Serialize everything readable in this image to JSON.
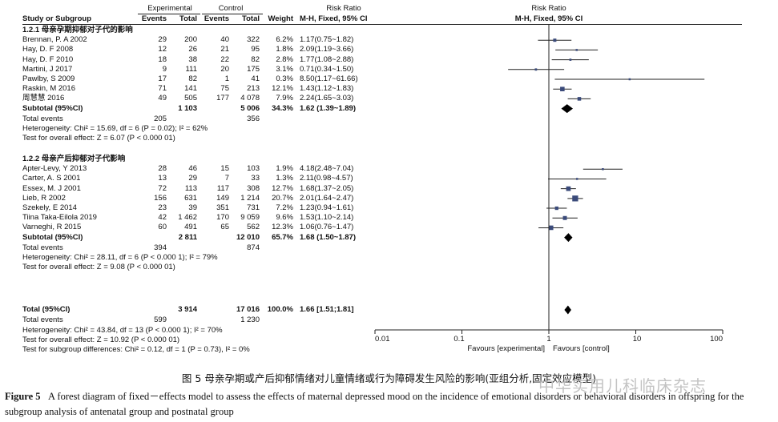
{
  "header": {
    "experimental": "Experimental",
    "control": "Control",
    "risk_ratio": "Risk Ratio",
    "risk_ratio_plot": "Risk Ratio",
    "study": "Study or Subgroup",
    "events_e": "Events",
    "total_e": "Total",
    "events_c": "Events",
    "total_c": "Total",
    "weight": "Weight",
    "method": "M-H, Fixed, 95% CI",
    "method_plot": "M-H, Fixed, 95% CI"
  },
  "subgroups": [
    {
      "title": "1.2.1 母亲孕期抑郁对子代的影响",
      "studies": [
        {
          "name": "Brennan, P. A 2002",
          "ee": "29",
          "et": "200",
          "ce": "40",
          "ct": "322",
          "w": "6.2%",
          "ci": "1.17(0.75~1.82)",
          "rr": 1.17,
          "lo": 0.75,
          "hi": 1.82
        },
        {
          "name": "Hay, D. F 2008",
          "ee": "12",
          "et": "26",
          "ce": "21",
          "ct": "95",
          "w": "1.8%",
          "ci": "2.09(1.19~3.66)",
          "rr": 2.09,
          "lo": 1.19,
          "hi": 3.66
        },
        {
          "name": "Hay, D. F 2010",
          "ee": "18",
          "et": "38",
          "ce": "22",
          "ct": "82",
          "w": "2.8%",
          "ci": "1.77(1.08~2.88)",
          "rr": 1.77,
          "lo": 1.08,
          "hi": 2.88
        },
        {
          "name": "Martini, J 2017",
          "ee": "9",
          "et": "111",
          "ce": "20",
          "ct": "175",
          "w": "3.1%",
          "ci": "0.71(0.34~1.50)",
          "rr": 0.71,
          "lo": 0.34,
          "hi": 1.5
        },
        {
          "name": "Pawlby, S 2009",
          "ee": "17",
          "et": "82",
          "ce": "1",
          "ct": "41",
          "w": "0.3%",
          "ci": "8.50(1.17~61.66)",
          "rr": 8.5,
          "lo": 1.17,
          "hi": 61.66
        },
        {
          "name": "Raskin, M 2016",
          "ee": "71",
          "et": "141",
          "ce": "75",
          "ct": "213",
          "w": "12.1%",
          "ci": "1.43(1.12~1.83)",
          "rr": 1.43,
          "lo": 1.12,
          "hi": 1.83
        },
        {
          "name": "周慧慧 2016",
          "ee": "49",
          "et": "505",
          "ce": "177",
          "ct": "4 078",
          "w": "7.9%",
          "ci": "2.24(1.65~3.03)",
          "rr": 2.24,
          "lo": 1.65,
          "hi": 3.03
        }
      ],
      "subtotal": {
        "label": "Subtotal (95%CI)",
        "et": "1 103",
        "ct": "5 006",
        "w": "34.3%",
        "ci": "1.62 (1.39~1.89)",
        "rr": 1.62,
        "lo": 1.39,
        "hi": 1.89
      },
      "total_events": {
        "label": "Total events",
        "e": "205",
        "c": "356"
      },
      "heterogeneity": "Heterogeneity: Chi² = 15.69, df = 6 (P = 0.02); I² = 62%",
      "overall": "Test for overall effect: Z = 6.07 (P < 0.000 01)"
    },
    {
      "title": "1.2.2 母亲产后抑郁对子代影响",
      "studies": [
        {
          "name": "Apter-Levy, Y 2013",
          "ee": "28",
          "et": "46",
          "ce": "15",
          "ct": "103",
          "w": "1.9%",
          "ci": "4.18(2.48~7.04)",
          "rr": 4.18,
          "lo": 2.48,
          "hi": 7.04
        },
        {
          "name": "Carter, A. S 2001",
          "ee": "13",
          "et": "29",
          "ce": "7",
          "ct": "33",
          "w": "1.3%",
          "ci": "2.11(0.98~4.57)",
          "rr": 2.11,
          "lo": 0.98,
          "hi": 4.57
        },
        {
          "name": "Essex, M. J 2001",
          "ee": "72",
          "et": "113",
          "ce": "117",
          "ct": "308",
          "w": "12.7%",
          "ci": "1.68(1.37~2.05)",
          "rr": 1.68,
          "lo": 1.37,
          "hi": 2.05
        },
        {
          "name": "Lieb, R 2002",
          "ee": "156",
          "et": "631",
          "ce": "149",
          "ct": "1 214",
          "w": "20.7%",
          "ci": "2.01(1.64~2.47)",
          "rr": 2.01,
          "lo": 1.64,
          "hi": 2.47
        },
        {
          "name": "Szekely, E 2014",
          "ee": "23",
          "et": "39",
          "ce": "351",
          "ct": "731",
          "w": "7.2%",
          "ci": "1.23(0.94~1.61)",
          "rr": 1.23,
          "lo": 0.94,
          "hi": 1.61
        },
        {
          "name": "Tiina Taka-Eilola 2019",
          "ee": "42",
          "et": "1 462",
          "ce": "170",
          "ct": "9 059",
          "w": "9.6%",
          "ci": "1.53(1.10~2.14)",
          "rr": 1.53,
          "lo": 1.1,
          "hi": 2.14
        },
        {
          "name": "Varneghi, R 2015",
          "ee": "60",
          "et": "491",
          "ce": "65",
          "ct": "562",
          "w": "12.3%",
          "ci": "1.06(0.76~1.47)",
          "rr": 1.06,
          "lo": 0.76,
          "hi": 1.47
        }
      ],
      "subtotal": {
        "label": "Subtotal (95%CI)",
        "et": "2 811",
        "ct": "12 010",
        "w": "65.7%",
        "ci": "1.68 (1.50~1.87)",
        "rr": 1.68,
        "lo": 1.5,
        "hi": 1.87
      },
      "total_events": {
        "label": "Total events",
        "e": "394",
        "c": "874"
      },
      "heterogeneity": "Heterogeneity: Chi² = 28.11, df = 6 (P < 0.000 1); I² = 79%",
      "overall": "Test for overall effect: Z = 9.08 (P < 0.000 01)"
    }
  ],
  "total": {
    "label": "Total (95%CI)",
    "et": "3 914",
    "ct": "17 016",
    "w": "100.0%",
    "ci": "1.66 [1.51;1.81]",
    "rr": 1.66,
    "lo": 1.51,
    "hi": 1.81,
    "events_label": "Total events",
    "e": "599",
    "c": "1 230",
    "heterogeneity": "Heterogeneity: Chi² = 43.84, df = 13 (P < 0.000 1); I² = 70%",
    "overall": "Test for overall effect: Z = 10.92 (P < 0.000 01)",
    "subgroup": "Test for subgroup differences: Chi² = 0.12, df = 1 (P = 0.73), I² = 0%"
  },
  "chart_data": {
    "type": "scatter",
    "x_scale": "log",
    "xlim": [
      0.01,
      100
    ],
    "ticks": [
      "0.01",
      "0.1",
      "1",
      "10",
      "100"
    ],
    "tick_values": [
      0.01,
      0.1,
      1,
      10,
      100
    ],
    "favours_left": "Favours [experimental]",
    "favours_right": "Favours [control]",
    "reference_line": 1
  },
  "caption": {
    "cn": "图 5   母亲孕期或产后抑郁情绪对儿童情绪或行为障碍发生风险的影响(亚组分析,固定效应模型)",
    "en_fig": "Figure 5",
    "en_text": "A forest diagram of fixed－effects model to assess the effects of maternal depressed mood on the incidence of emotional disorders or behavioral disorders in offspring for the subgroup analysis of antenatal group and postnatal group"
  },
  "watermark": "中华实用儿科临床杂志"
}
